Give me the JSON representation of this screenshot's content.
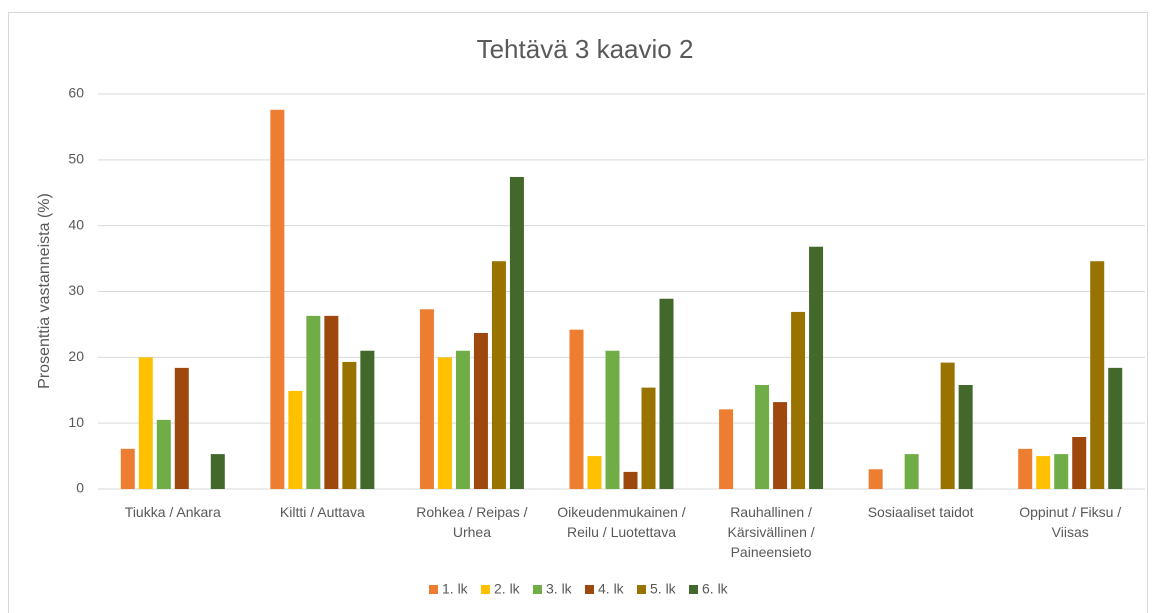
{
  "chart_data": {
    "type": "bar",
    "title": "Tehtävä 3 kaavio 2",
    "y_label": "Prosenttia vastanneista (%)",
    "categories": [
      "Tiukka / Ankara",
      "Kiltti / Auttava",
      "Rohkea / Reipas / Urhea",
      "Oikeudenmukainen / Reilu / Luotettava",
      "Rauhallinen / Kärsivällinen / Paineensieto",
      "Sosiaaliset taidot",
      "Oppinut / Fiksu / Viisas"
    ],
    "series": [
      {
        "name": "1. lk",
        "color": "#ED7D31",
        "values": [
          6.1,
          57.6,
          27.3,
          24.2,
          12.1,
          3,
          6.1
        ]
      },
      {
        "name": "2. lk",
        "color": "#FFC000",
        "values": [
          20,
          14.9,
          20,
          5,
          0,
          0,
          5
        ]
      },
      {
        "name": "3. lk",
        "color": "#70AD47",
        "values": [
          10.5,
          26.3,
          21,
          21,
          15.8,
          5.3,
          5.3
        ]
      },
      {
        "name": "4. lk",
        "color": "#9E480E",
        "values": [
          18.4,
          26.3,
          23.7,
          2.6,
          13.2,
          0,
          7.9
        ]
      },
      {
        "name": "5. lk",
        "color": "#997300",
        "values": [
          0,
          19.3,
          34.6,
          15.4,
          26.9,
          19.2,
          34.6
        ]
      },
      {
        "name": "6. lk",
        "color": "#43682B",
        "values": [
          5.3,
          21,
          47.4,
          28.9,
          36.8,
          15.8,
          18.4
        ]
      }
    ],
    "ylim": [
      0,
      60
    ],
    "yticks": [
      0,
      10,
      20,
      30,
      40,
      50,
      60
    ],
    "grid": true,
    "legend": "bottom"
  }
}
